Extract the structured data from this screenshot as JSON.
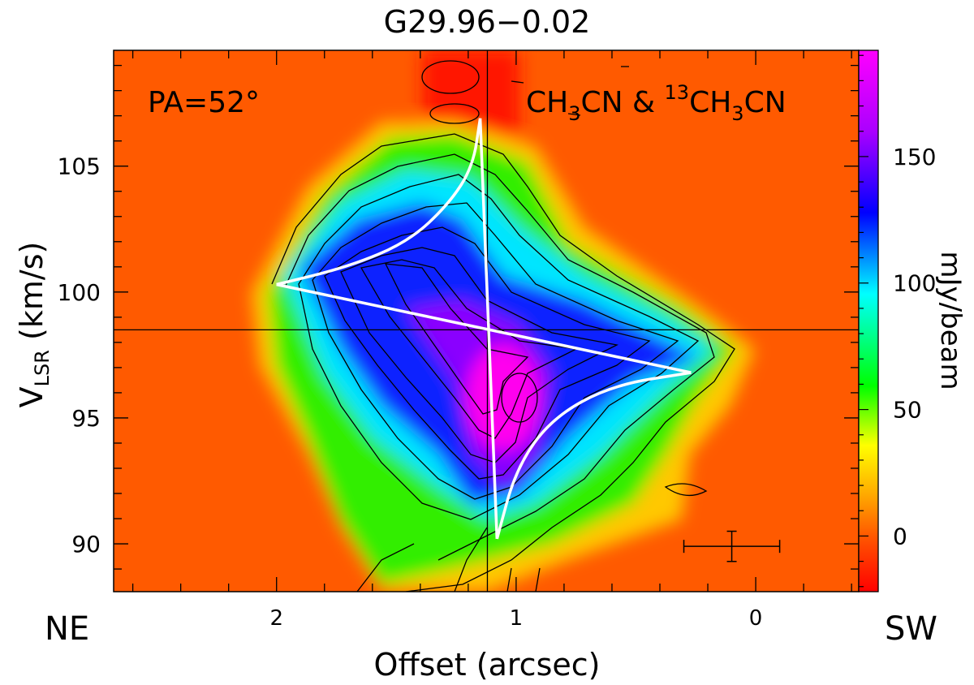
{
  "chart_data": {
    "type": "heatmap",
    "title": "G29.96−0.02",
    "xlabel": "Offset (arcsec)",
    "ylabel_main": "V",
    "ylabel_sub": "LSR",
    "ylabel_rest": " (km/s)",
    "x_left_label": "NE",
    "x_right_label": "SW",
    "colorbar_label": "mJy/beam",
    "annotations": {
      "pa": "PA=52°",
      "molecule_1": "CH",
      "molecule_1_sub": "3",
      "molecule_1_rest": "CN & ",
      "molecule_2_sup": "13",
      "molecule_2": "CH",
      "molecule_2_sub": "3",
      "molecule_2_rest": "CN"
    },
    "xlim": [
      2.68,
      -0.43
    ],
    "ylim": [
      88.1,
      109.6
    ],
    "xticks": [
      2,
      1,
      0
    ],
    "xtick_labels": [
      "2",
      "1",
      "0"
    ],
    "yticks": [
      90,
      95,
      100,
      105
    ],
    "ytick_labels": [
      "90",
      "95",
      "100",
      "105"
    ],
    "colorbar": {
      "range": [
        -22,
        192
      ],
      "ticks": [
        0,
        50,
        100,
        150
      ],
      "tick_labels": [
        "0",
        "50",
        "100",
        "150"
      ],
      "colors": [
        "#ff0000",
        "#ff5500",
        "#ffaa00",
        "#ffff00",
        "#00ff00",
        "#00ffff",
        "#0000ff",
        "#aa00ff",
        "#ff00ff"
      ]
    },
    "reference_lines": {
      "x": 1.12,
      "y": 98.5
    },
    "emission_peaks": [
      {
        "x": 0.97,
        "y": 96.0,
        "value": 190
      },
      {
        "x": 1.45,
        "y": 101.5,
        "value": 150
      },
      {
        "x": 0.6,
        "y": 97.8,
        "value": 130
      },
      {
        "x": 1.05,
        "y": 92.5,
        "value": 130
      }
    ],
    "keplerian_curve": {
      "segment_1": [
        [
          2.0,
          100.3
        ],
        [
          1.7,
          101.0
        ],
        [
          1.45,
          102.0
        ],
        [
          1.28,
          103.5
        ],
        [
          1.18,
          105.0
        ],
        [
          1.15,
          106.9
        ]
      ],
      "segment_2": [
        [
          0.27,
          96.8
        ],
        [
          0.6,
          96.3
        ],
        [
          0.85,
          95.0
        ],
        [
          1.0,
          93.0
        ],
        [
          1.08,
          90.2
        ]
      ],
      "axis_line": [
        [
          2.0,
          100.3
        ],
        [
          0.27,
          96.8
        ]
      ],
      "vertical_line": [
        [
          1.15,
          106.9
        ],
        [
          1.08,
          90.2
        ]
      ]
    },
    "error_bar": {
      "x": 0.1,
      "y": 89.9,
      "dx": 0.2,
      "dy": 0.6
    }
  }
}
